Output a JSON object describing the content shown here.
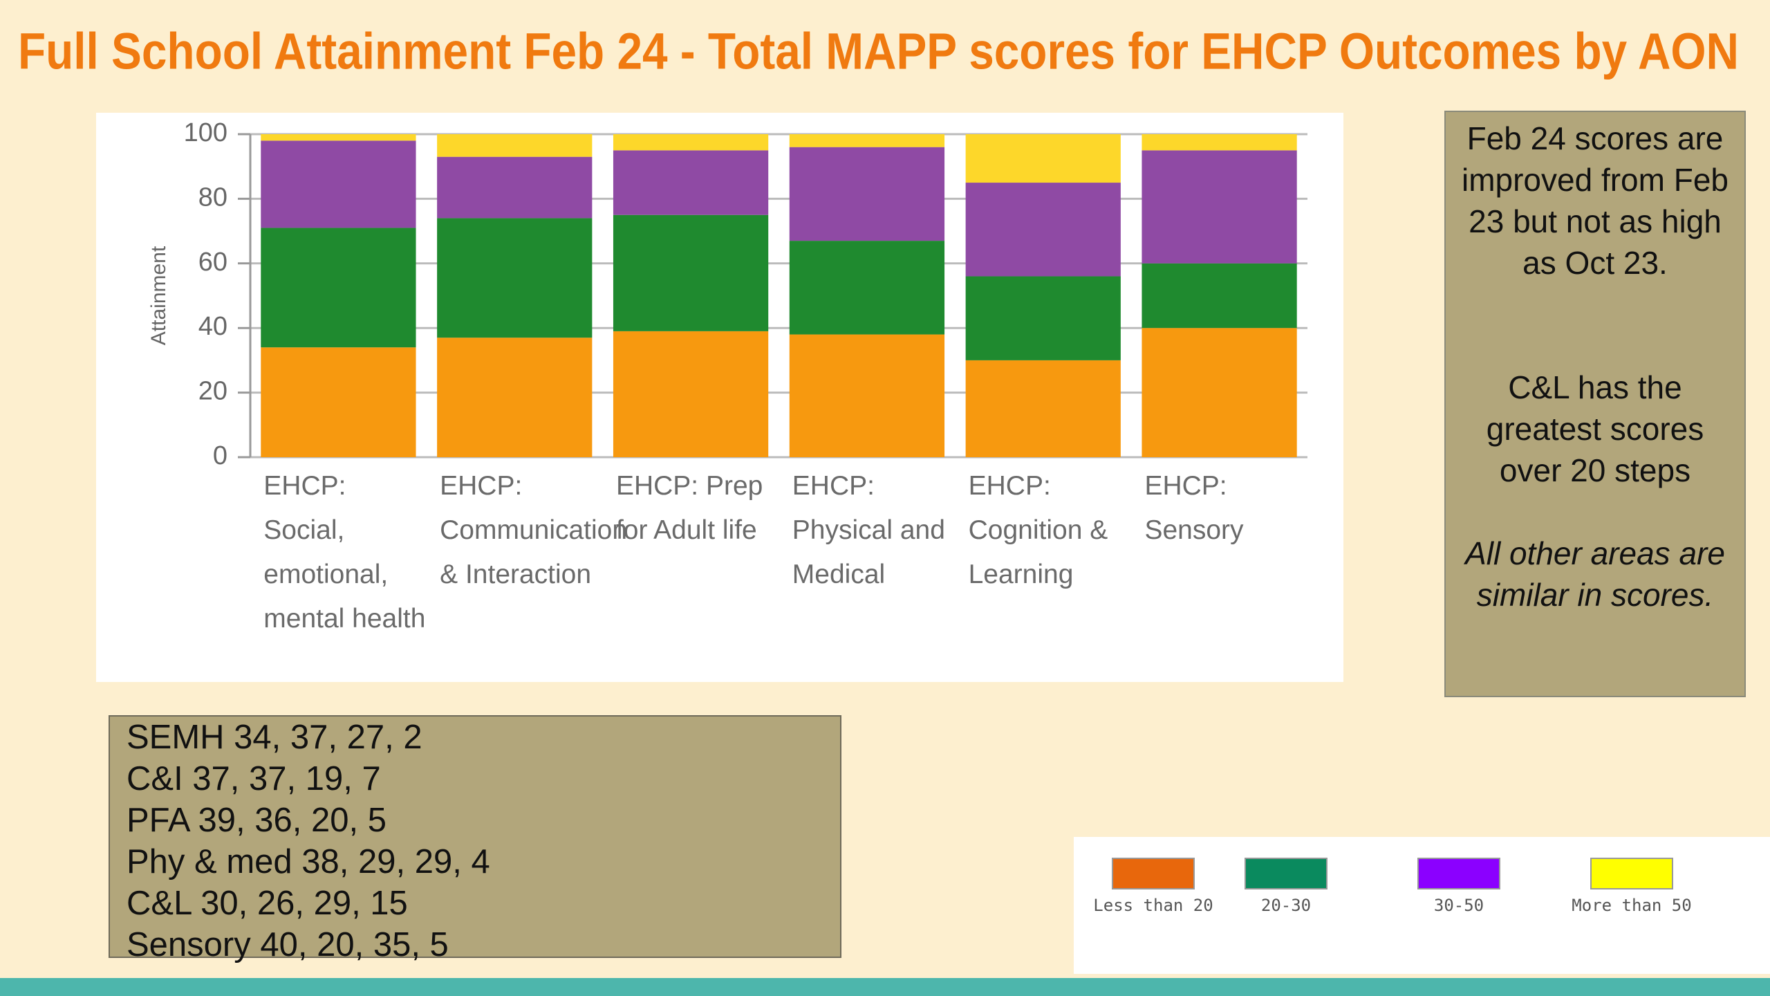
{
  "title": "Full School Attainment Feb 24 - Total MAPP scores for EHCP Outcomes by AON",
  "chart_data": {
    "type": "stacked_bar",
    "y_label": "Attainment",
    "categories": [
      "EHCP: Social, emotional, mental health",
      "EHCP: Communication & Interaction",
      "EHCP: Prep for Adult life",
      "EHCP: Physical and Medical",
      "EHCP: Cognition & Learning",
      "EHCP: Sensory"
    ],
    "series": [
      {
        "name": "Less than 20",
        "color": "#f7990f",
        "values": [
          34,
          37,
          39,
          38,
          30,
          40
        ]
      },
      {
        "name": "20-30",
        "color": "#1f8a2f",
        "values": [
          37,
          37,
          36,
          29,
          26,
          20
        ]
      },
      {
        "name": "30-50",
        "color": "#8f4aa4",
        "values": [
          27,
          19,
          20,
          29,
          29,
          35
        ]
      },
      {
        "name": "More than 50",
        "color": "#fdd72a",
        "values": [
          2,
          7,
          5,
          4,
          15,
          5
        ]
      }
    ],
    "legend_colors": [
      "#e8670c",
      "#0a8a5e",
      "#8b00ff",
      "#ffff00"
    ],
    "ylim": [
      0,
      100
    ],
    "yticks": [
      0,
      20,
      40,
      60,
      80,
      100
    ],
    "grid": true
  },
  "notes": {
    "paragraphs": [
      "Feb 24 scores are improved from Feb 23 but not as high as Oct 23.",
      "C&L has the greatest scores over 20 steps",
      "All other areas are similar in scores."
    ]
  },
  "scores": {
    "lines": [
      "SEMH 34, 37, 27, 2",
      "C&I 37, 37, 19, 7",
      "PFA 39, 36, 20, 5",
      "Phy & med 38, 29, 29, 4",
      "C&L 30, 26, 29, 15",
      "Sensory 40, 20, 35, 5"
    ]
  }
}
